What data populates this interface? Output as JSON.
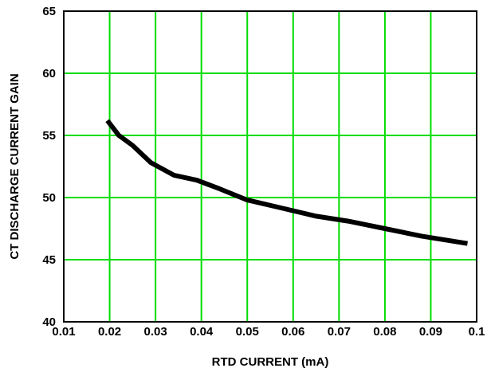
{
  "chart_data": {
    "type": "line",
    "title": "",
    "xlabel": "RTD CURRENT (mA)",
    "ylabel": "CT DISCHARGE CURRENT GAIN",
    "xlim": [
      0.01,
      0.1
    ],
    "ylim": [
      40,
      65
    ],
    "x_ticks": [
      0.01,
      0.02,
      0.03,
      0.04,
      0.05,
      0.06,
      0.07,
      0.08,
      0.09,
      0.1
    ],
    "x_tick_labels": [
      "0.01",
      "0.02",
      "0.03",
      "0.04",
      "0.05",
      "0.06",
      "0.07",
      "0.08",
      "0.09",
      "0.1"
    ],
    "y_ticks": [
      40,
      45,
      50,
      55,
      60,
      65
    ],
    "y_tick_labels": [
      "40",
      "45",
      "50",
      "55",
      "60",
      "65"
    ],
    "grid": true,
    "colors": {
      "grid": "#00dd00",
      "line": "#000000",
      "frame": "#000000"
    },
    "series": [
      {
        "x": [
          0.0195,
          0.022,
          0.025,
          0.029,
          0.034,
          0.039,
          0.044,
          0.05,
          0.057,
          0.065,
          0.072,
          0.08,
          0.088,
          0.098
        ],
        "y": [
          56.2,
          55.0,
          54.2,
          52.8,
          51.8,
          51.4,
          50.7,
          49.8,
          49.2,
          48.5,
          48.1,
          47.5,
          46.9,
          46.3
        ]
      }
    ]
  }
}
